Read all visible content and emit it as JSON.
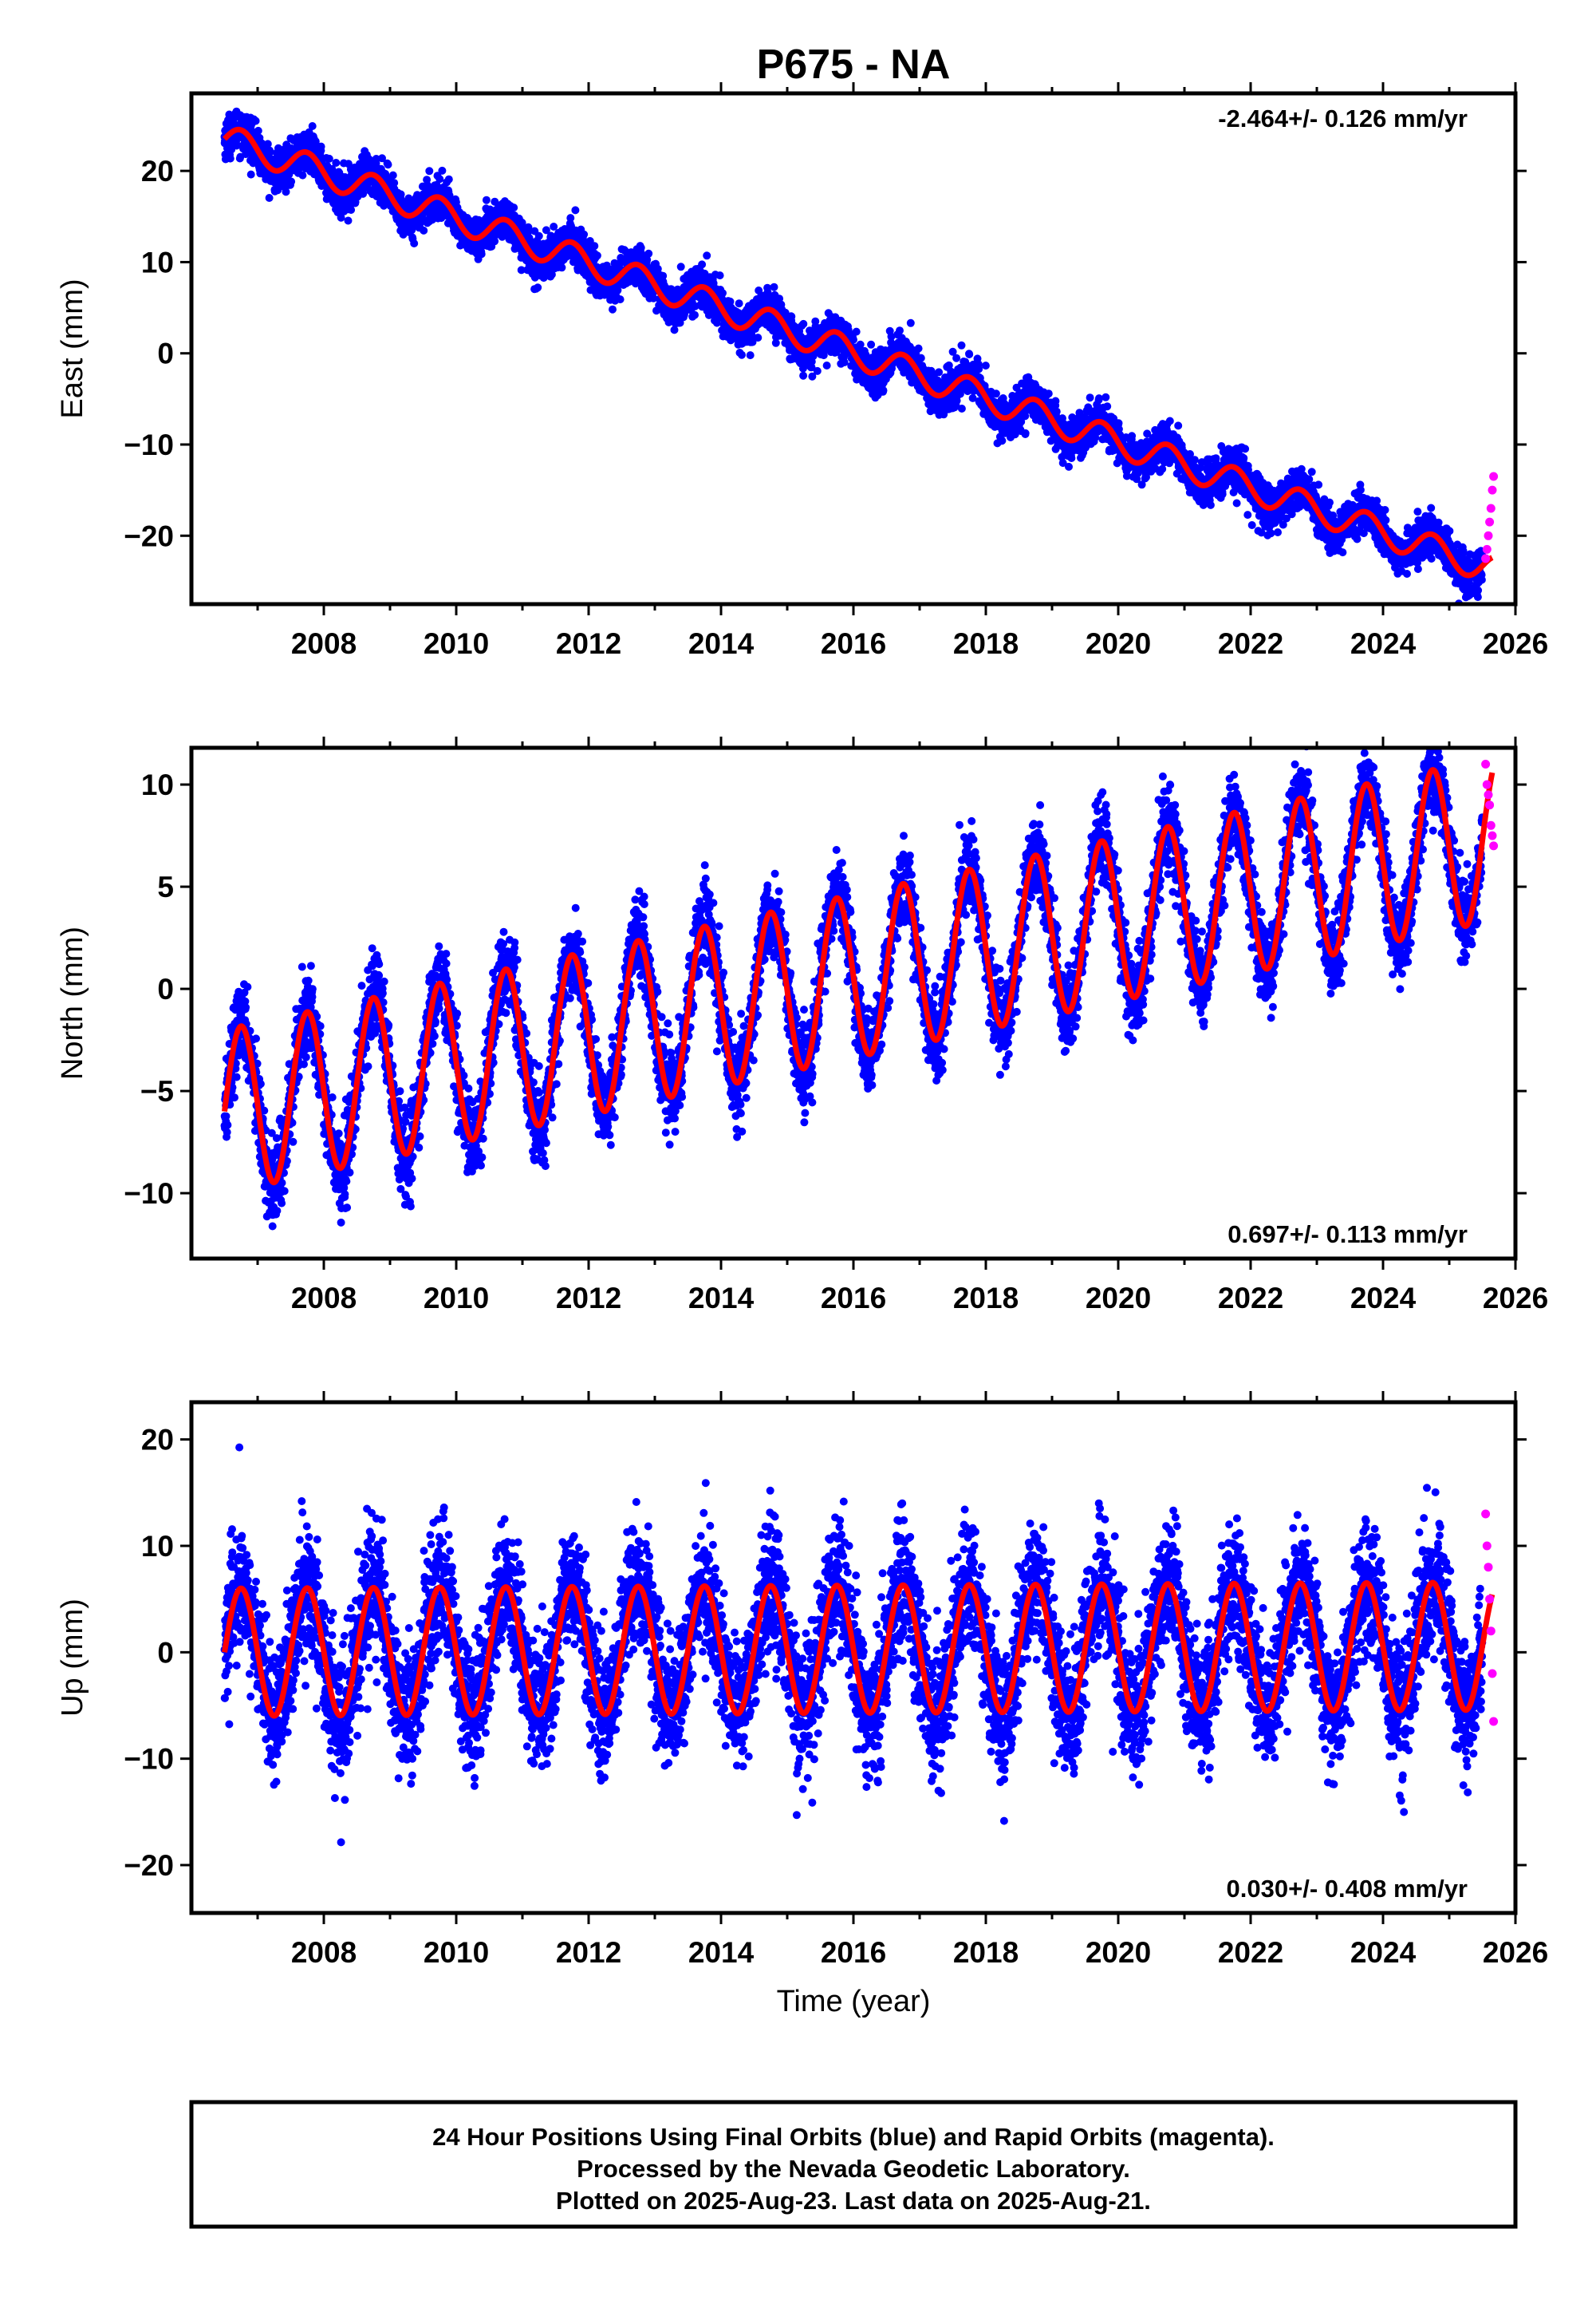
{
  "title": "P675 - NA",
  "xlabel": "Time (year)",
  "colors": {
    "final": "#0000ff",
    "rapid": "#ff00ff",
    "model": "#ff0000"
  },
  "footer": {
    "line1": "24 Hour Positions Using Final Orbits (blue) and Rapid Orbits (magenta).",
    "line2": "Processed by the Nevada Geodetic Laboratory.",
    "line3": "Plotted on 2025-Aug-23. Last data on 2025-Aug-21."
  },
  "chart_data": [
    {
      "type": "scatter",
      "component": "east",
      "ylabel": "East (mm)",
      "rate_label": "-2.464+/- 0.126 mm/yr",
      "rate_position": "top-right",
      "xlim": [
        2006.0,
        2026.0
      ],
      "ylim": [
        -27.5,
        28.5
      ],
      "xticks": [
        2008,
        2010,
        2012,
        2014,
        2016,
        2018,
        2020,
        2022,
        2024,
        2026
      ],
      "yticks": [
        -20,
        -10,
        0,
        10,
        20
      ],
      "series": [
        {
          "name": "Final Orbits (blue)",
          "kind": "daily positions",
          "x_range": [
            2006.5,
            2025.5
          ],
          "model": {
            "value_at_start": 23.5,
            "rate": -2.464,
            "seasonal_amplitude": 1.6,
            "noise": 1.1
          }
        },
        {
          "name": "Rapid Orbits (magenta)",
          "kind": "daily positions",
          "x": [
            2025.55,
            2025.57,
            2025.59,
            2025.61,
            2025.63,
            2025.65,
            2025.67
          ],
          "y": [
            -22.5,
            -21.5,
            -20.0,
            -18.5,
            -17.0,
            -15.0,
            -13.5
          ]
        },
        {
          "name": "model fit",
          "kind": "red line"
        }
      ]
    },
    {
      "type": "scatter",
      "component": "north",
      "ylabel": "North (mm)",
      "rate_label": "0.697+/- 0.113 mm/yr",
      "rate_position": "bottom-right",
      "xlim": [
        2006.0,
        2026.0
      ],
      "ylim": [
        -13.2,
        11.8
      ],
      "xticks": [
        2008,
        2010,
        2012,
        2014,
        2016,
        2018,
        2020,
        2022,
        2024,
        2026
      ],
      "yticks": [
        -10,
        -5,
        0,
        5,
        10
      ],
      "series": [
        {
          "name": "Final Orbits (blue)",
          "kind": "daily positions",
          "x_range": [
            2006.5,
            2025.5
          ],
          "model": {
            "value_at_start": -6.0,
            "rate": 0.697,
            "seasonal_amplitude": 4.0,
            "noise": 1.0
          }
        },
        {
          "name": "Rapid Orbits (magenta)",
          "kind": "daily positions",
          "x": [
            2025.55,
            2025.57,
            2025.59,
            2025.61,
            2025.63,
            2025.65,
            2025.67
          ],
          "y": [
            11.0,
            10.0,
            9.5,
            9.0,
            8.0,
            7.5,
            7.0
          ]
        },
        {
          "name": "model fit",
          "kind": "red line"
        }
      ]
    },
    {
      "type": "scatter",
      "component": "up",
      "ylabel": "Up (mm)",
      "rate_label": "0.030+/- 0.408 mm/yr",
      "rate_position": "bottom-right",
      "xlim": [
        2006.0,
        2026.0
      ],
      "ylim": [
        -24.5,
        23.5
      ],
      "xticks": [
        2008,
        2010,
        2012,
        2014,
        2016,
        2018,
        2020,
        2022,
        2024,
        2026
      ],
      "yticks": [
        -20,
        -10,
        0,
        10,
        20
      ],
      "series": [
        {
          "name": "Final Orbits (blue)",
          "kind": "daily positions",
          "x_range": [
            2006.5,
            2025.5
          ],
          "model": {
            "value_at_start": 0.0,
            "rate": 0.03,
            "seasonal_amplitude": 6.0,
            "noise": 3.0
          }
        },
        {
          "name": "Rapid Orbits (magenta)",
          "kind": "daily positions",
          "x": [
            2025.55,
            2025.57,
            2025.59,
            2025.61,
            2025.63,
            2025.65,
            2025.67
          ],
          "y": [
            13.0,
            10.0,
            8.0,
            5.0,
            2.0,
            -2.0,
            -6.5
          ]
        },
        {
          "name": "model fit",
          "kind": "red line"
        }
      ]
    }
  ]
}
